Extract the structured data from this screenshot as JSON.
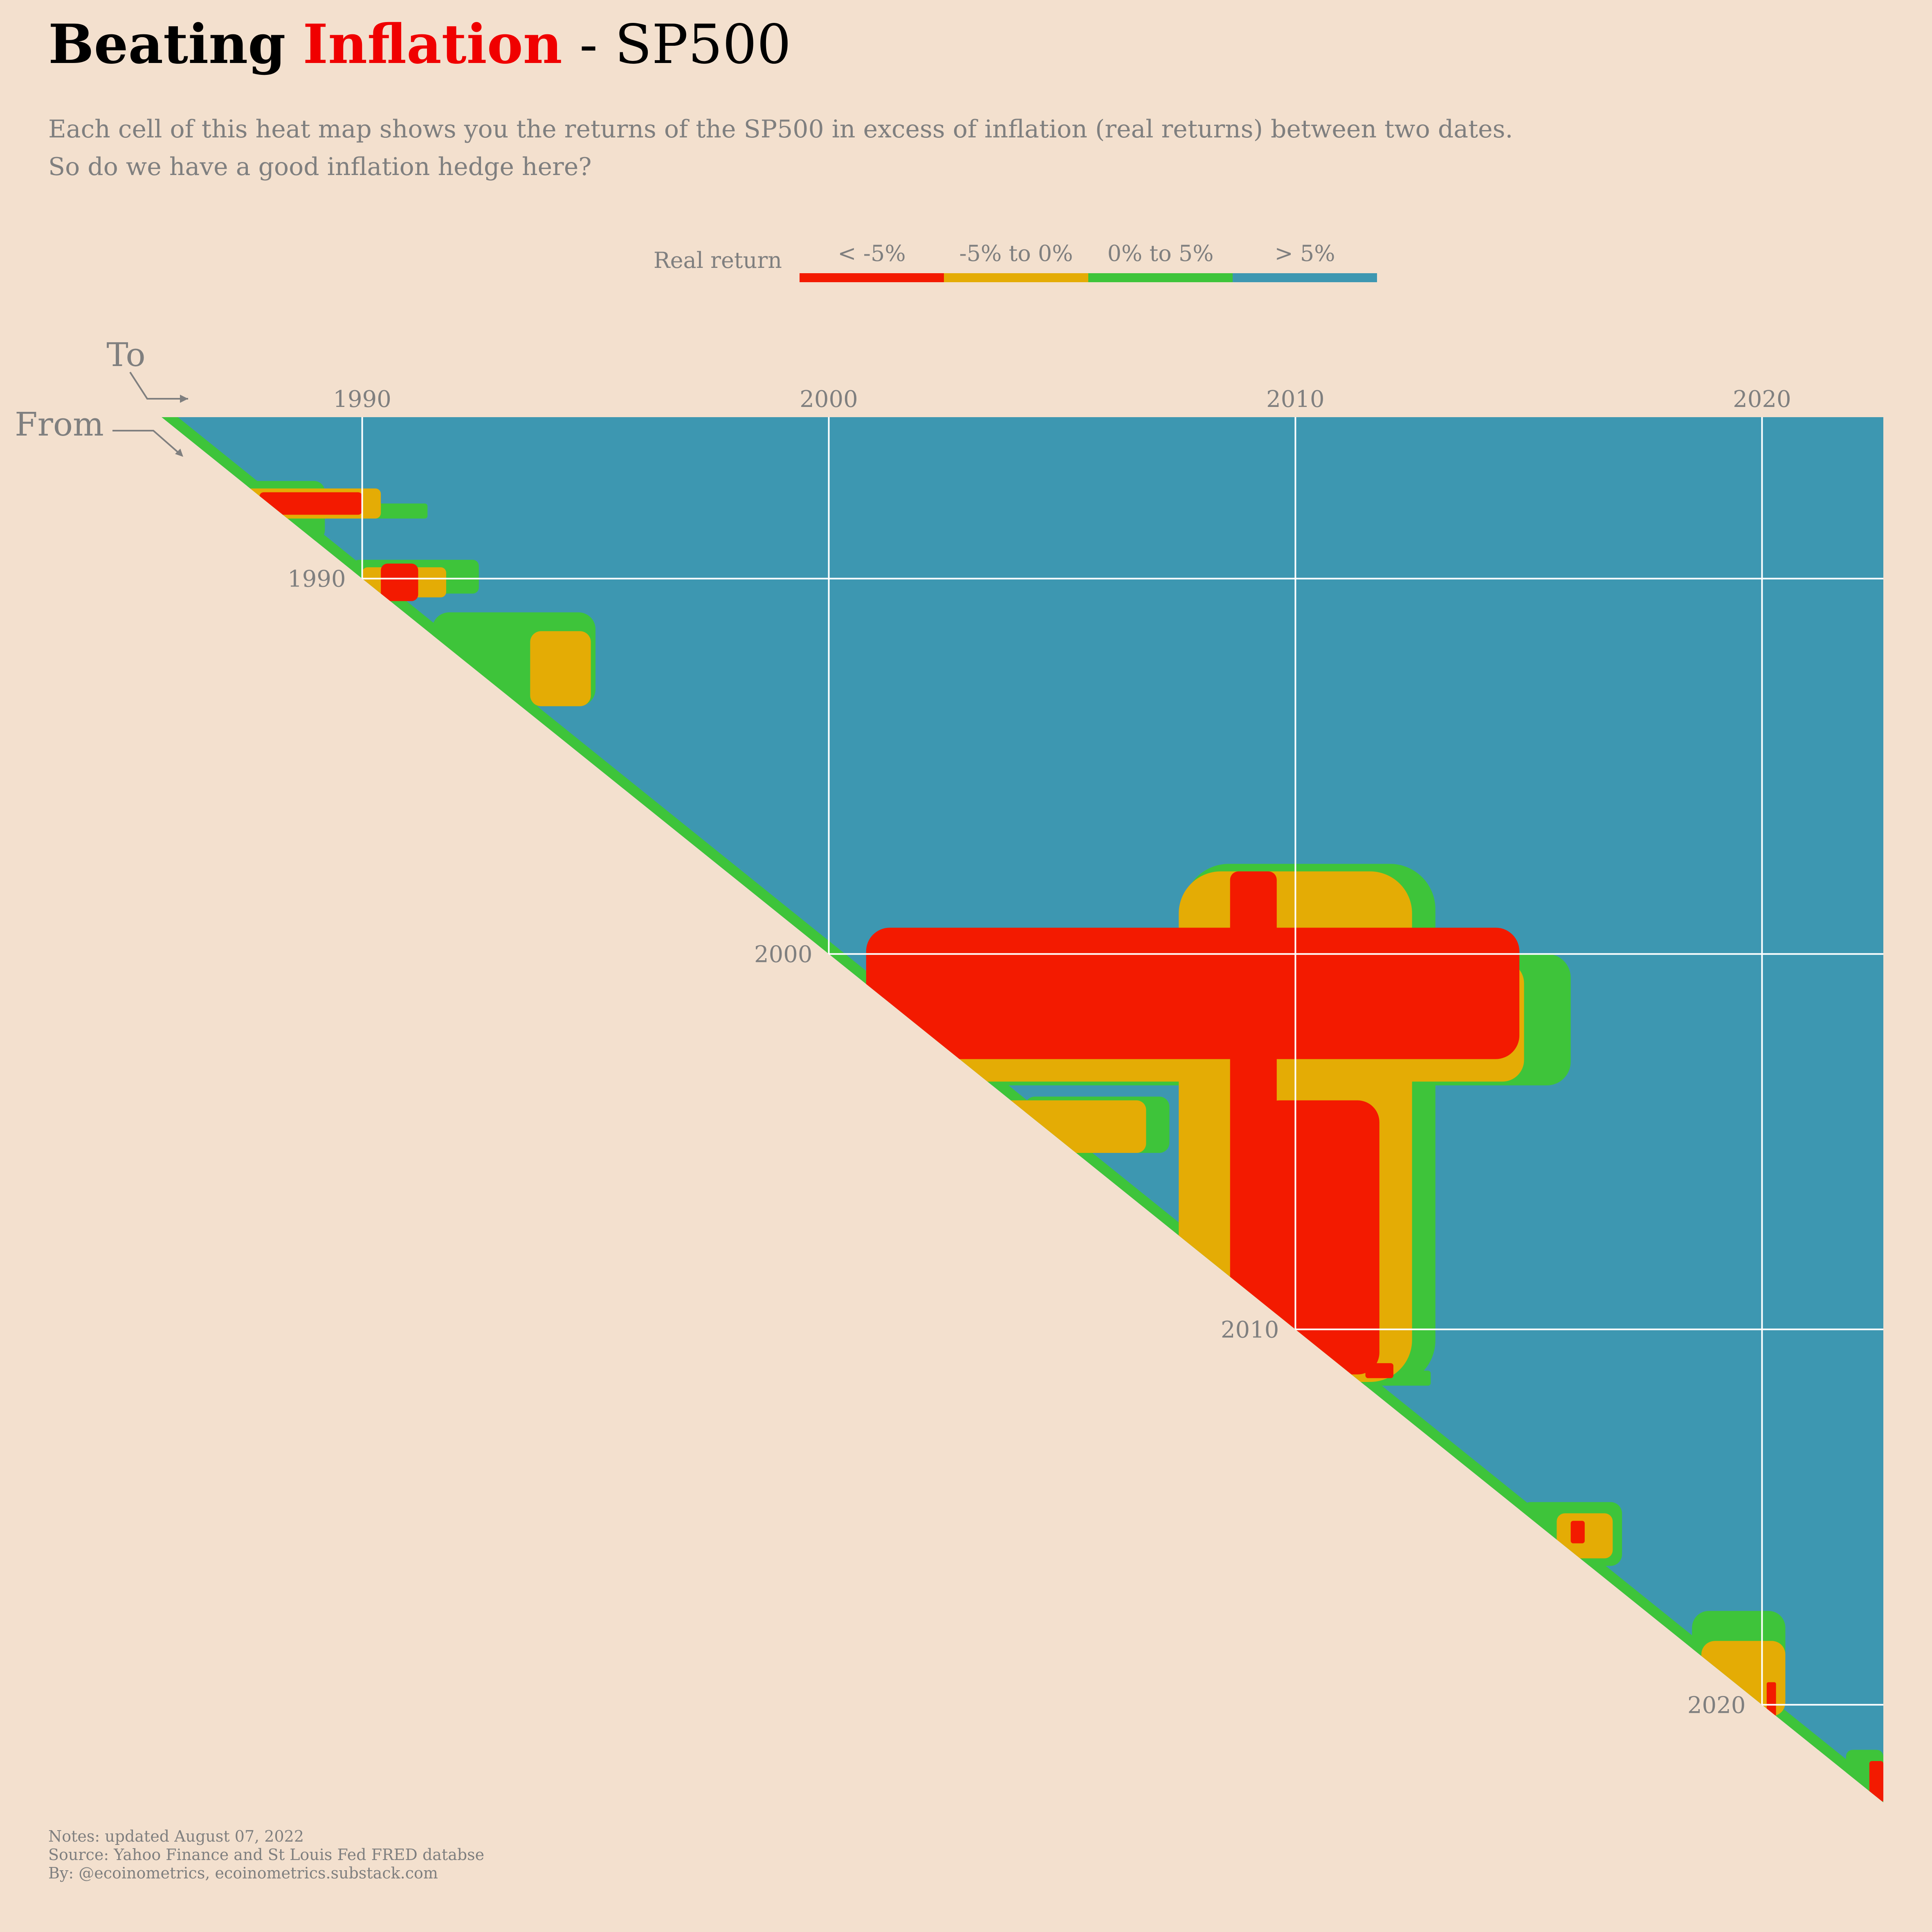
{
  "title": {
    "part1": "Beating",
    "part2": "Inflation",
    "part3": "- SP500"
  },
  "subtitle": {
    "line1": "Each cell of this heat map shows you the returns of the SP500 in excess of inflation (real returns) between two dates.",
    "line2": "So do we have a good inflation hedge here?"
  },
  "notes": {
    "line1": "Notes: updated August 07, 2022",
    "line2": "Source: Yahoo Finance and St Louis Fed FRED databse",
    "line3": "By: @ecoinometrics, ecoinometrics.substack.com"
  },
  "colors": {
    "background": "#f3e0ce",
    "red": "#f31a00",
    "orange": "#e4ac05",
    "green": "#3ec43a",
    "blue": "#3d97b1",
    "text_gray": "#7f7f7f",
    "grid": "#ffffff"
  },
  "chart_data": {
    "type": "heatmap",
    "x_axis_label": "To",
    "y_axis_label": "From",
    "x_range": [
      1985.7,
      2022.6
    ],
    "y_range": [
      1985.7,
      2022.6
    ],
    "x_ticks": [
      1990,
      2000,
      2010,
      2020
    ],
    "y_ticks": [
      1990,
      2000,
      2010,
      2020
    ],
    "x_tick_labels": [
      "1990",
      "2000",
      "2010",
      "2020"
    ],
    "y_tick_labels": [
      "1990",
      "2000",
      "2010",
      "2020"
    ],
    "grid": true,
    "legend": {
      "title": "Real return",
      "placement": "top-center",
      "items": [
        {
          "label": "< -5%",
          "color": "#f31a00"
        },
        {
          "label": "-5% to 0%",
          "color": "#e4ac05"
        },
        {
          "label": "0% to 5%",
          "color": "#3ec43a"
        },
        {
          "label": "> 5%",
          "color": "#3d97b1"
        }
      ]
    },
    "default_category": "> 5%",
    "regions": [
      {
        "category": "< -5%",
        "from": [
          2000.6,
          2001.5
        ],
        "to": [
          2002.5,
          2004.0
        ]
      },
      {
        "category": "< -5%",
        "from": [
          1999.3,
          2002.8
        ],
        "to": [
          2000.8,
          2014.8
        ]
      },
      {
        "category": "< -5%",
        "from": [
          1997.8,
          2011.3
        ],
        "to": [
          2008.6,
          2009.6
        ]
      },
      {
        "category": "< -5%",
        "from": [
          2003.9,
          2011.2
        ],
        "to": [
          2009.2,
          2011.8
        ]
      },
      {
        "category": "< -5%",
        "from": [
          2006.5,
          2007.5
        ],
        "to": [
          2008.7,
          2009.9
        ]
      },
      {
        "category": "< -5%",
        "from": [
          1987.7,
          1988.3
        ],
        "to": [
          1987.8,
          1990.0
        ]
      },
      {
        "category": "< -5%",
        "from": [
          1989.6,
          1990.6
        ],
        "to": [
          1990.4,
          1991.2
        ]
      },
      {
        "category": "< -5%",
        "from": [
          2010.9,
          2011.3
        ],
        "to": [
          2011.5,
          2012.1
        ]
      },
      {
        "category": "< -5%",
        "from": [
          2015.1,
          2015.7
        ],
        "to": [
          2015.9,
          2016.2
        ]
      },
      {
        "category": "< -5%",
        "from": [
          2019.4,
          2020.3
        ],
        "to": [
          2020.1,
          2020.3
        ]
      },
      {
        "category": "< -5%",
        "from": [
          2021.5,
          2022.6
        ],
        "to": [
          2022.3,
          2022.6
        ]
      },
      {
        "category": "-5% to 0%",
        "from": [
          2000.2,
          2003.4
        ],
        "to": [
          2001.8,
          2014.9
        ]
      },
      {
        "category": "-5% to 0%",
        "from": [
          1997.8,
          2011.4
        ],
        "to": [
          2007.5,
          2012.5
        ]
      },
      {
        "category": "-5% to 0%",
        "from": [
          2003.9,
          2004.7
        ],
        "to": [
          2001.4,
          2005.2
        ]
      },
      {
        "category": "-5% to 0%",
        "from": [
          1987.6,
          1988.4
        ],
        "to": [
          1987.5,
          1990.4
        ]
      },
      {
        "category": "-5% to 0%",
        "from": [
          1989.7,
          1990.5
        ],
        "to": [
          1990.0,
          1991.8
        ]
      },
      {
        "category": "-5% to 0%",
        "from": [
          1991.4,
          1993.4
        ],
        "to": [
          1993.6,
          1994.9
        ]
      },
      {
        "category": "-5% to 0%",
        "from": [
          2003.9,
          2005.3
        ],
        "to": [
          2004.6,
          2006.8
        ]
      },
      {
        "category": "-5% to 0%",
        "from": [
          2014.9,
          2016.1
        ],
        "to": [
          2015.6,
          2016.8
        ]
      },
      {
        "category": "-5% to 0%",
        "from": [
          2018.3,
          2020.3
        ],
        "to": [
          2018.7,
          2020.5
        ]
      },
      {
        "category": "0% to 5%",
        "from": [
          2000.0,
          2003.5
        ],
        "to": [
          2001.5,
          2015.9
        ]
      },
      {
        "category": "0% to 5%",
        "from": [
          1997.6,
          2011.5
        ],
        "to": [
          2007.6,
          2013.0
        ]
      },
      {
        "category": "0% to 5%",
        "from": [
          1988.0,
          1988.4
        ],
        "to": [
          1987.0,
          1991.4
        ]
      },
      {
        "category": "0% to 5%",
        "from": [
          1987.4,
          1989.0
        ],
        "to": [
          1987.5,
          1989.2
        ]
      },
      {
        "category": "0% to 5%",
        "from": [
          1989.5,
          1990.4
        ],
        "to": [
          1989.8,
          1992.5
        ]
      },
      {
        "category": "0% to 5%",
        "from": [
          1990.9,
          1993.4
        ],
        "to": [
          1991.5,
          1995.0
        ]
      },
      {
        "category": "0% to 5%",
        "from": [
          2003.8,
          2005.3
        ],
        "to": [
          2004.2,
          2007.3
        ]
      },
      {
        "category": "0% to 5%",
        "from": [
          2011.1,
          2011.5
        ],
        "to": [
          2011.2,
          2012.9
        ]
      },
      {
        "category": "0% to 5%",
        "from": [
          2014.6,
          2016.3
        ],
        "to": [
          2014.8,
          2017.0
        ]
      },
      {
        "category": "0% to 5%",
        "from": [
          2017.5,
          2020.2
        ],
        "to": [
          2018.5,
          2020.5
        ]
      },
      {
        "category": "0% to 5%",
        "from": [
          2021.2,
          2022.6
        ],
        "to": [
          2021.8,
          2022.6
        ]
      }
    ],
    "diagonal_band_category": "0% to 5%"
  }
}
